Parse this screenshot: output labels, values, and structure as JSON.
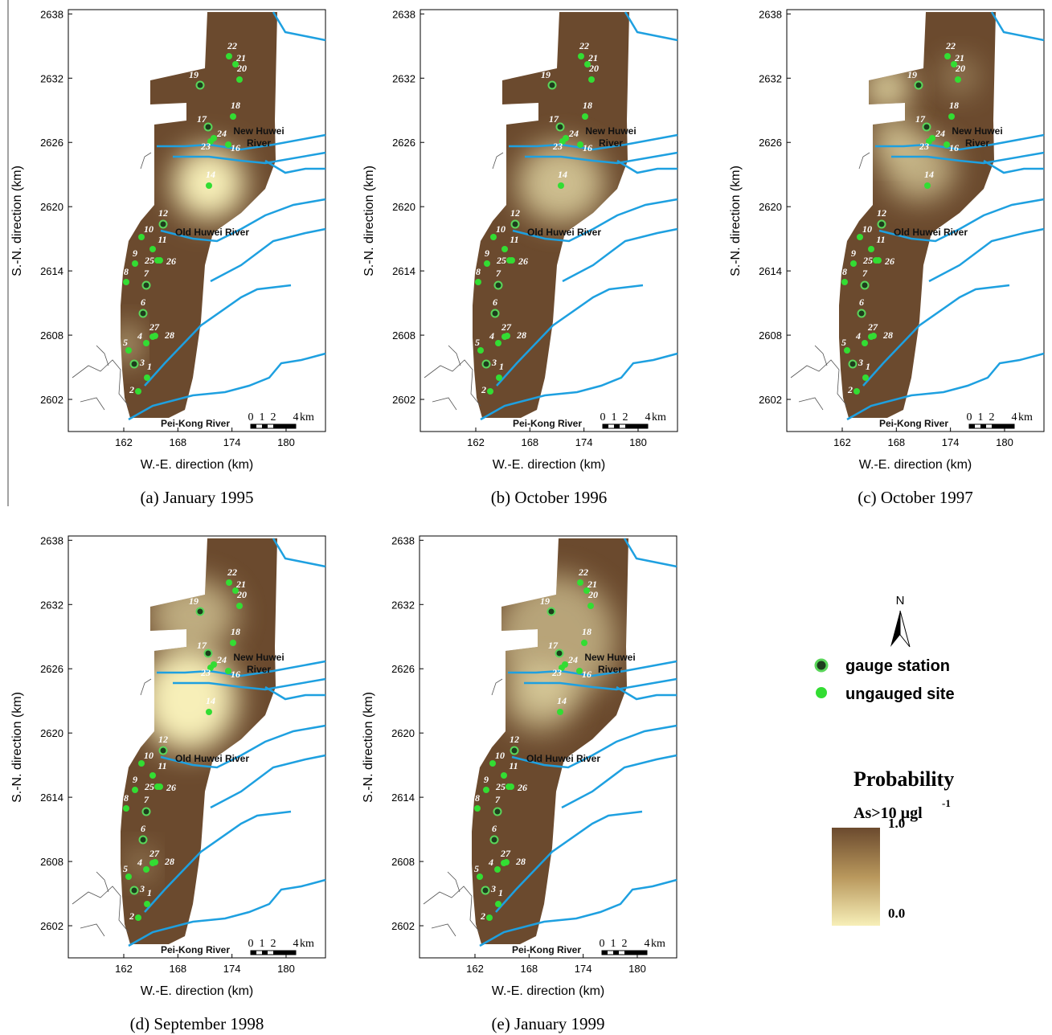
{
  "axes": {
    "xlabel": "W.-E. direction (km)",
    "ylabel": "S.-N. direction (km)",
    "xlim": [
      155.85,
      184.37
    ],
    "ylim": [
      2599,
      2638.4
    ],
    "xticks": [
      162,
      168,
      174,
      180
    ],
    "yticks": [
      2602,
      2608,
      2614,
      2620,
      2626,
      2632,
      2638
    ]
  },
  "rivers": {
    "new_huwei": [
      "New Huwei",
      "River"
    ],
    "old_huwei": "Old Huwei River",
    "pei_kong": "Pei-Kong River"
  },
  "scale_bar": {
    "ticks": [
      0,
      1,
      2,
      4
    ],
    "unit": "km"
  },
  "sites": [
    {
      "label": "1",
      "gauged": false
    },
    {
      "label": "2",
      "gauged": false
    },
    {
      "label": "3",
      "gauged": true
    },
    {
      "label": "4",
      "gauged": false
    },
    {
      "label": "5",
      "gauged": false
    },
    {
      "label": "6",
      "gauged": true
    },
    {
      "label": "7",
      "gauged": true
    },
    {
      "label": "8",
      "gauged": false
    },
    {
      "label": "9",
      "gauged": false
    },
    {
      "label": "10",
      "gauged": false
    },
    {
      "label": "11",
      "gauged": false
    },
    {
      "label": "12",
      "gauged": true
    },
    {
      "label": "14",
      "gauged": false
    },
    {
      "label": "16",
      "gauged": false
    },
    {
      "label": "17",
      "gauged": true
    },
    {
      "label": "18",
      "gauged": false
    },
    {
      "label": "19",
      "gauged": true
    },
    {
      "label": "20",
      "gauged": false
    },
    {
      "label": "21",
      "gauged": false
    },
    {
      "label": "22",
      "gauged": false
    },
    {
      "label": "23",
      "gauged": false
    },
    {
      "label": "24",
      "gauged": false
    },
    {
      "label": "25",
      "gauged": false
    },
    {
      "label": "26",
      "gauged": false
    },
    {
      "label": "27",
      "gauged": false
    },
    {
      "label": "28",
      "gauged": false
    }
  ],
  "panels": [
    {
      "caption": "(a) January 1995"
    },
    {
      "caption": "(b) October 1996"
    },
    {
      "caption": "(c) October 1997"
    },
    {
      "caption": "(d) September 1998"
    },
    {
      "caption": "(e) January 1999"
    }
  ],
  "legend": {
    "north": "N",
    "gauge": "gauge station",
    "ungauged": "ungauged site",
    "title": "Probability",
    "subtitle": "As>10 µgl",
    "superscript": "-1",
    "max": "1.0",
    "min": "0.0"
  }
}
